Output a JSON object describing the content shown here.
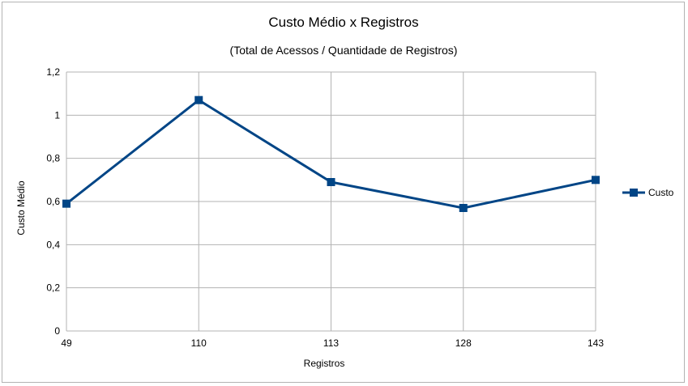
{
  "chart_data": {
    "type": "line",
    "title": "Custo Médio x Registros",
    "subtitle": "(Total de Acessos / Quantidade de Registros)",
    "xlabel": "Registros",
    "ylabel": "Custo Médio",
    "categories": [
      "49",
      "110",
      "113",
      "128",
      "143"
    ],
    "series": [
      {
        "name": "Custo",
        "values": [
          0.59,
          1.07,
          0.69,
          0.57,
          0.7
        ]
      }
    ],
    "ylim": [
      0,
      1.2
    ],
    "yticks": [
      "0",
      "0,2",
      "0,4",
      "0,6",
      "0,8",
      "1",
      "1,2"
    ],
    "grid": true,
    "legend": "right",
    "colors": {
      "series": "#004586",
      "grid": "#b3b3b3"
    }
  }
}
